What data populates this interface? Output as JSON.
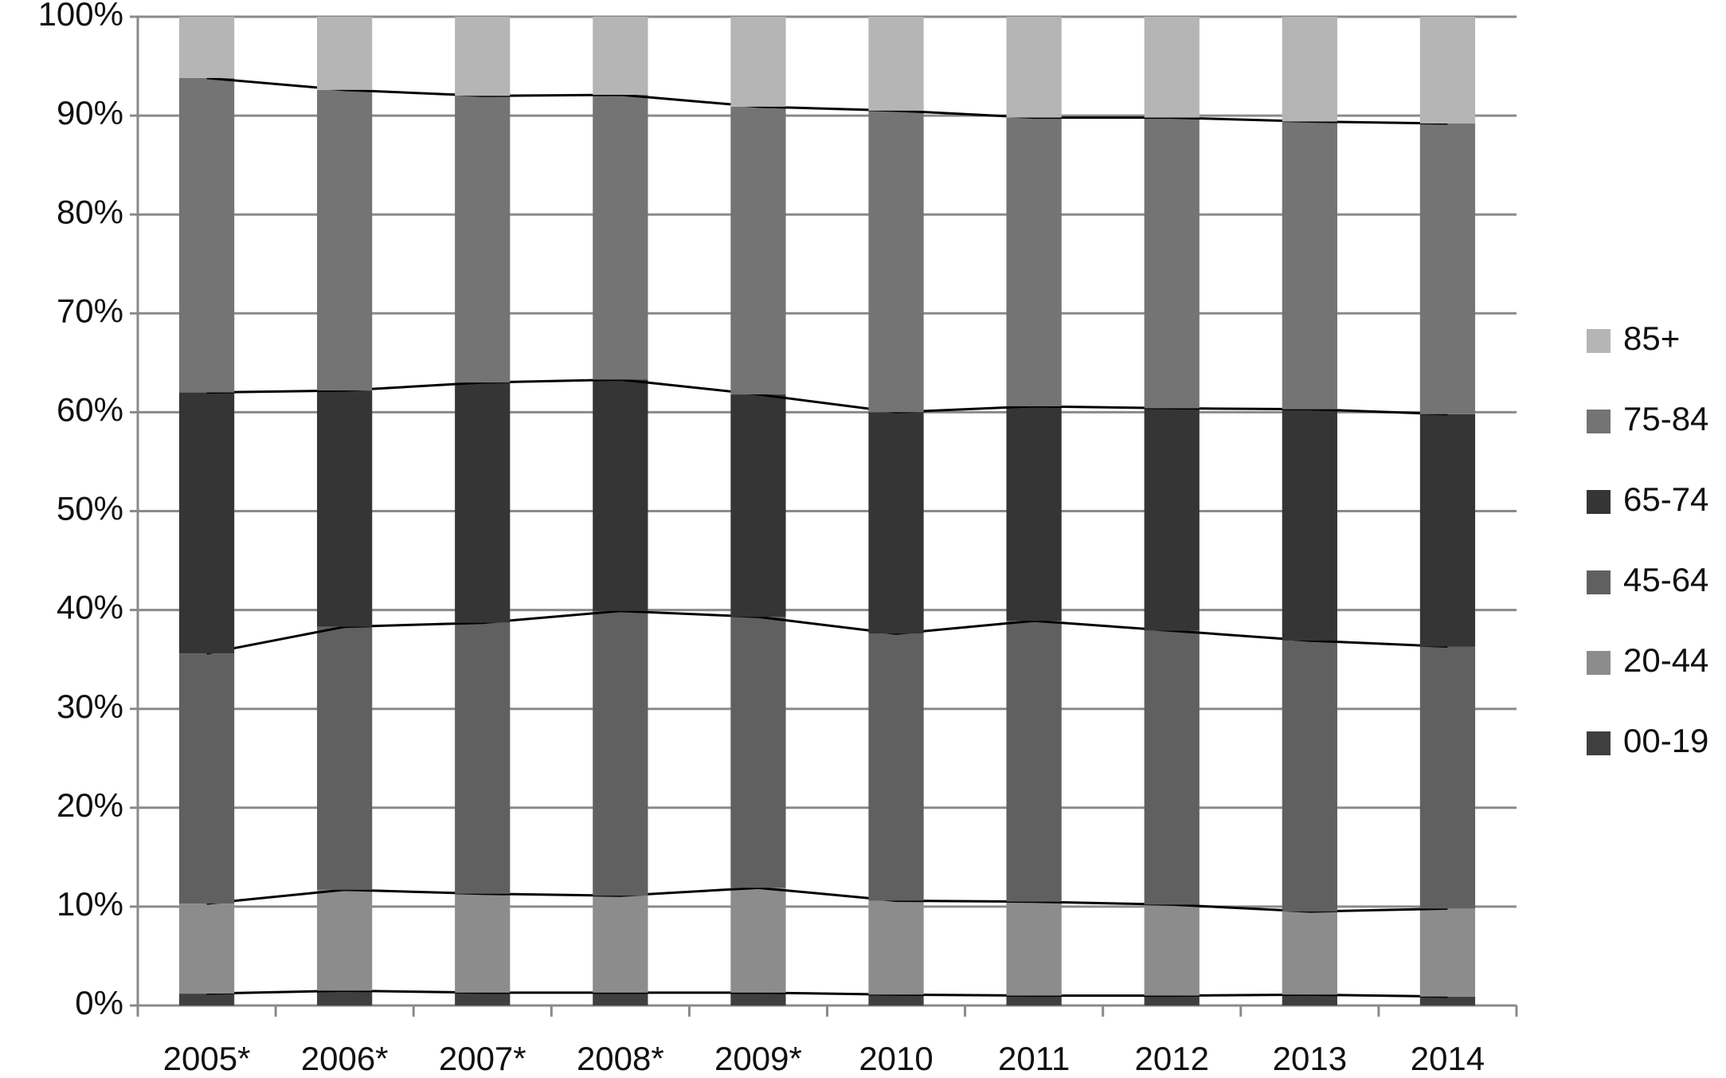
{
  "chart_data": {
    "type": "stacked_bar",
    "categories": [
      "2005*",
      "2006*",
      "2007*",
      "2008*",
      "2009*",
      "2010",
      "2011",
      "2012",
      "2013",
      "2014"
    ],
    "series": [
      {
        "name": "00-19",
        "color": "#3f3f3f",
        "values": [
          1.2,
          1.5,
          1.3,
          1.3,
          1.3,
          1.1,
          1.0,
          1.0,
          1.1,
          0.9
        ]
      },
      {
        "name": "20-44",
        "color": "#8c8c8c",
        "values": [
          9.1,
          10.2,
          10.0,
          9.8,
          10.6,
          9.5,
          9.5,
          9.2,
          8.4,
          8.9
        ]
      },
      {
        "name": "45-64",
        "color": "#606060",
        "values": [
          25.3,
          26.6,
          27.4,
          28.8,
          27.4,
          27.0,
          28.4,
          27.7,
          27.4,
          26.5
        ]
      },
      {
        "name": "65-74",
        "color": "#353535",
        "values": [
          26.4,
          23.9,
          24.3,
          23.4,
          22.5,
          22.4,
          21.7,
          22.5,
          23.4,
          23.5
        ]
      },
      {
        "name": "75-84",
        "color": "#747474",
        "values": [
          31.8,
          30.4,
          29.0,
          28.8,
          29.1,
          30.5,
          29.2,
          29.4,
          29.1,
          29.4
        ]
      },
      {
        "name": "85+",
        "color": "#b5b5b5",
        "values": [
          6.2,
          7.4,
          8.0,
          7.9,
          9.1,
          9.5,
          10.2,
          10.2,
          10.6,
          10.8
        ]
      }
    ],
    "ylim": [
      0,
      100
    ],
    "yticks": [
      {
        "value": 0,
        "label": "0%"
      },
      {
        "value": 10,
        "label": "10%"
      },
      {
        "value": 20,
        "label": "20%"
      },
      {
        "value": 30,
        "label": "30%"
      },
      {
        "value": 40,
        "label": "40%"
      },
      {
        "value": 50,
        "label": "50%"
      },
      {
        "value": 60,
        "label": "60%"
      },
      {
        "value": 70,
        "label": "70%"
      },
      {
        "value": 80,
        "label": "80%"
      },
      {
        "value": 90,
        "label": "90%"
      },
      {
        "value": 100,
        "label": "100%"
      }
    ],
    "grid": true,
    "legend": "right"
  }
}
